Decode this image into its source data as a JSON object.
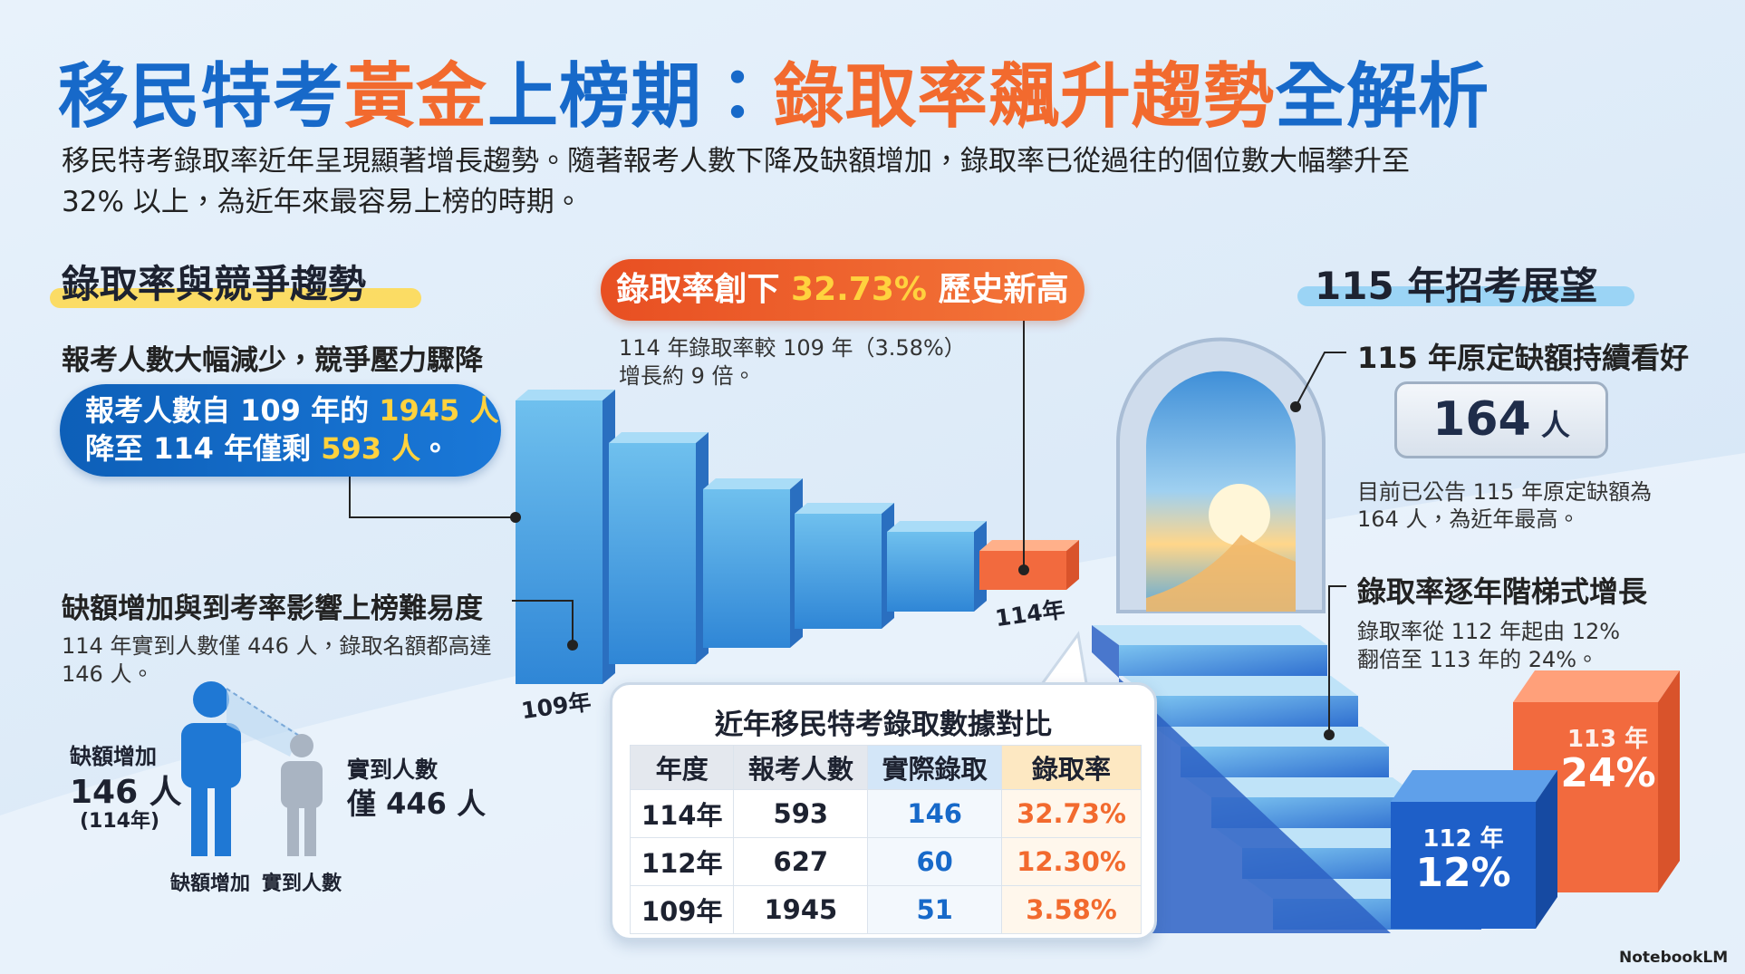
{
  "header": {
    "title_parts": [
      "移民特考",
      "黃金",
      "上榜期：",
      "錄取率飆升趨勢",
      "全解析"
    ],
    "intro_lines": [
      "移民特考錄取率近年呈現顯著增長趨勢。隨著報考人數下降及缺額增加，錄取率已從過往的個位數大幅攀升至",
      "32% 以上，為近年來最容易上榜的時期。"
    ]
  },
  "left": {
    "heading": "錄取率與競爭趨勢",
    "subheading": "報考人數大幅減少，競爭壓力驟降",
    "pill_line1": [
      "報考人數自 109 年的 ",
      "1945 人"
    ],
    "pill_line2": [
      "降至 114 年僅剩 ",
      "593 人",
      "。"
    ],
    "subheading2": "缺額增加與到考率影響上榜難易度",
    "note_lines": [
      "114 年實到人數僅 446 人，錄取名額都高達",
      "146 人。"
    ],
    "icon": {
      "vacancy_label": "缺額增加",
      "vacancy_value": "146 人",
      "vacancy_year": "(114年)",
      "attend_label": "實到人數",
      "attend_value": "僅 446 人",
      "caption_left": "缺額增加",
      "caption_right": "實到人數"
    }
  },
  "middle": {
    "banner": [
      "錄取率創下 ",
      "32.73%",
      " 歷史新高"
    ],
    "note_lines": [
      "114 年錄取率較 109 年（3.58%）",
      "增長約 9 倍。"
    ],
    "bar_labels": [
      "109年",
      "114年"
    ],
    "table": {
      "title": "近年移民特考錄取數據對比",
      "header": [
        "年度",
        "報考人數",
        "實際錄取",
        "錄取率"
      ],
      "rows": [
        [
          "114年",
          "593",
          "146",
          "32.73%"
        ],
        [
          "112年",
          "627",
          "60",
          "12.30%"
        ],
        [
          "109年",
          "1945",
          "51",
          "3.58%"
        ]
      ]
    }
  },
  "right": {
    "heading": "115 年招考展望",
    "point1": "115 年原定缺額持續看好",
    "badge": [
      "164",
      " 人"
    ],
    "point1_lines": [
      "目前已公告 115 年原定缺額為",
      "164 人，為近年最高。"
    ],
    "point2": "錄取率逐年階梯式增長",
    "point2_lines": [
      "錄取率從 112 年起由 12%",
      "翻倍至 113 年的 24%。"
    ],
    "box_112": [
      "112 年",
      "12%"
    ],
    "box_113": [
      "113 年",
      "24%"
    ]
  },
  "footer": {
    "brand": "NotebookLM"
  }
}
